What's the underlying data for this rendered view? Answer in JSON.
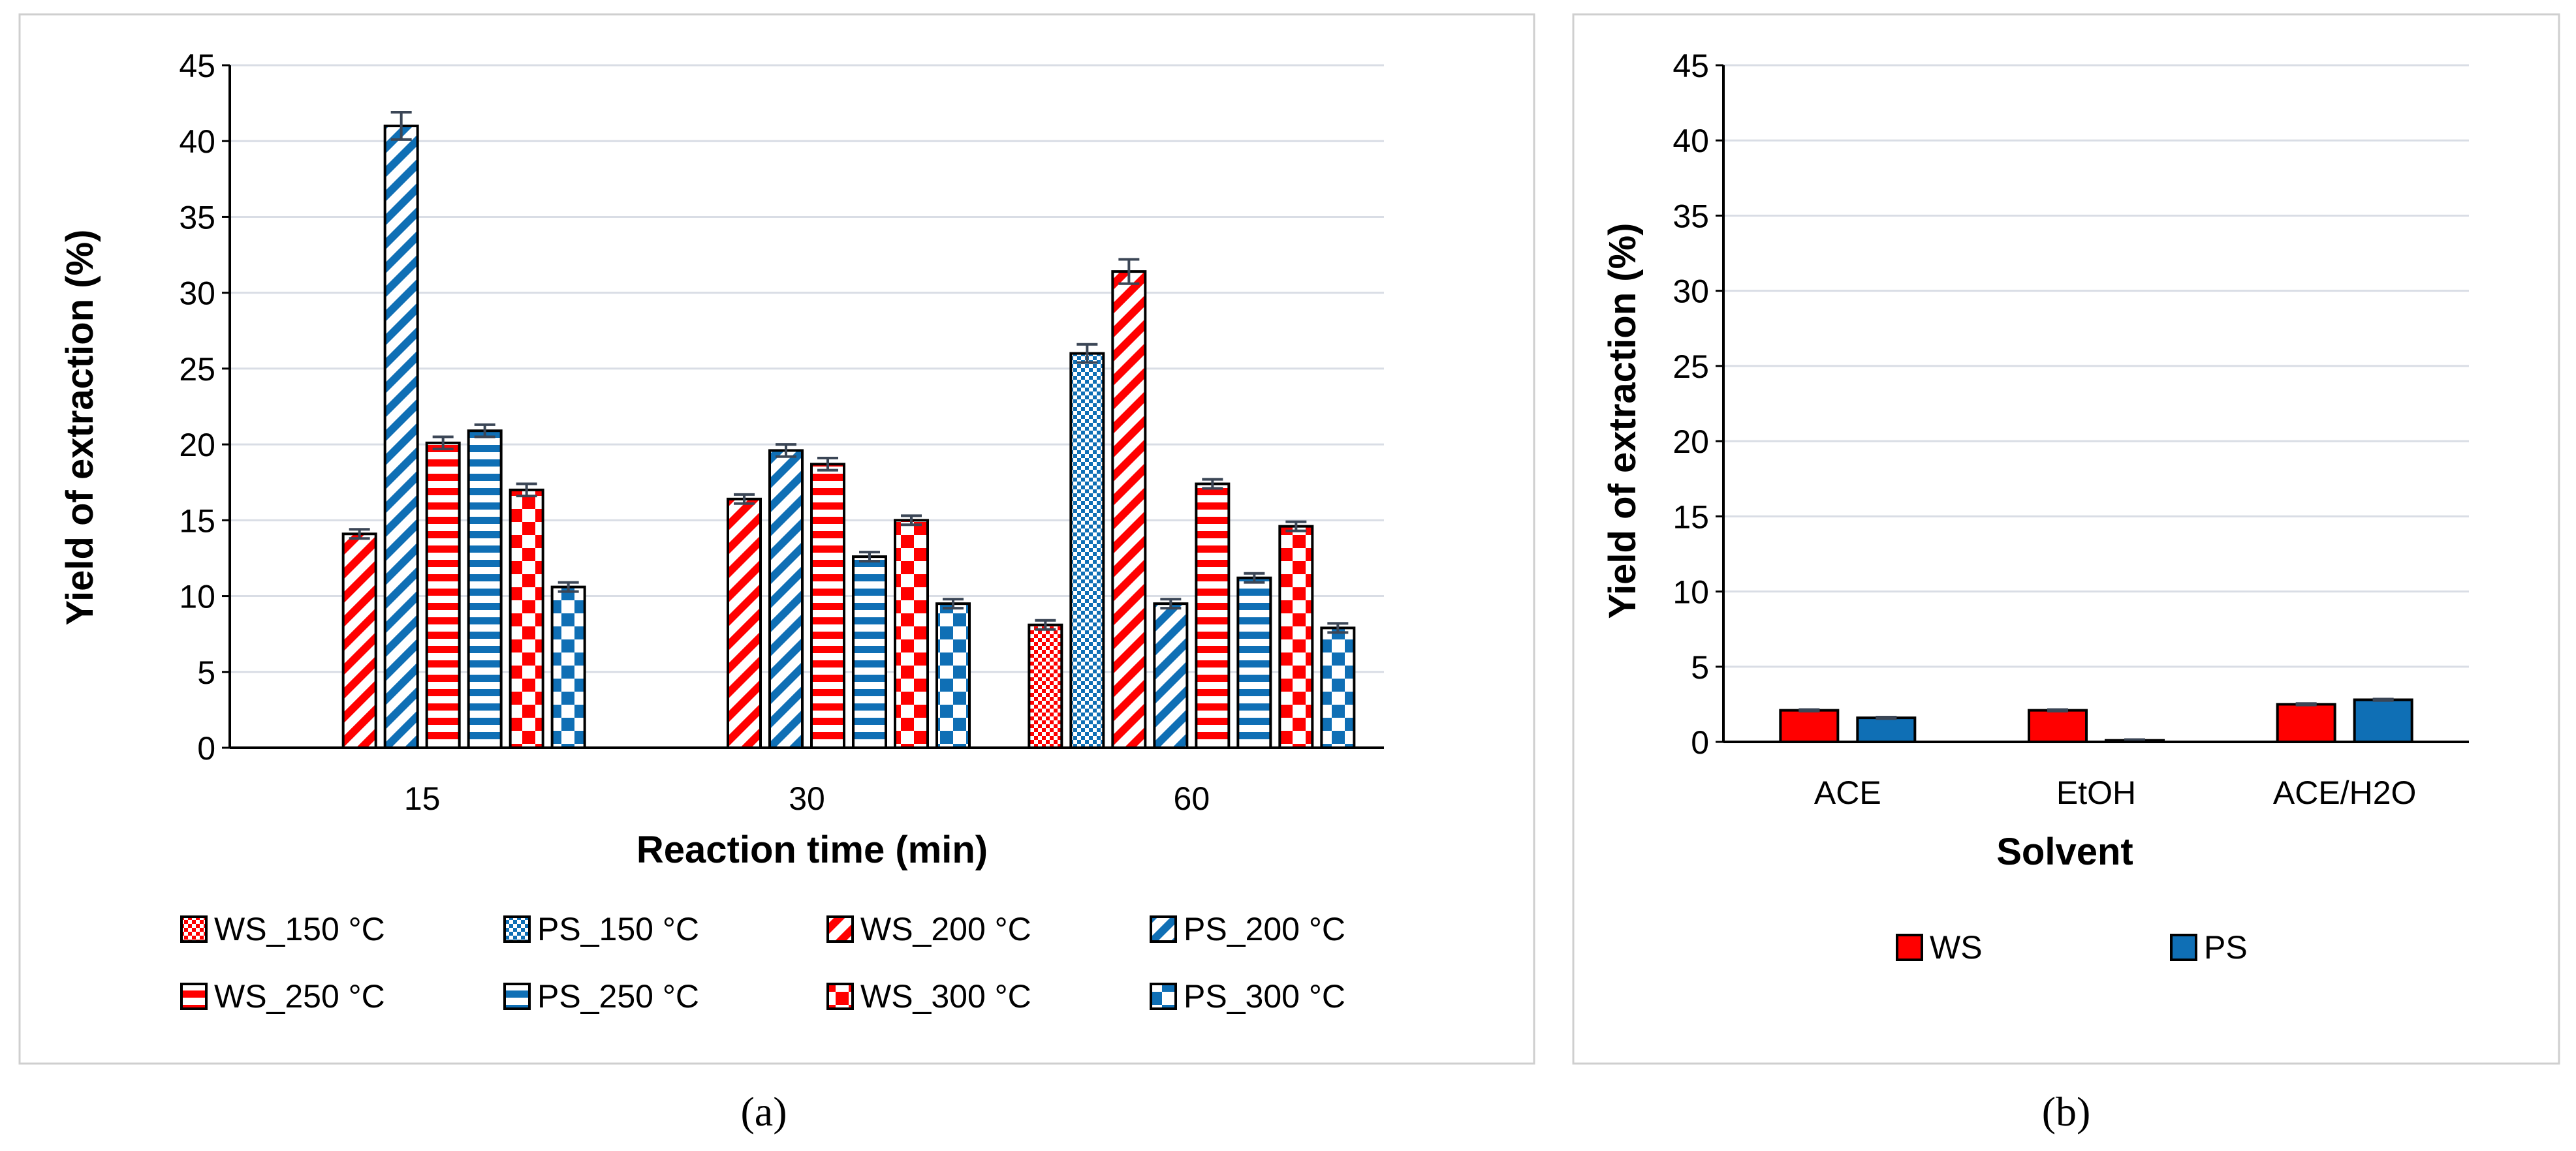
{
  "colors": {
    "ws": "#ff0000",
    "ps": "#0f6fb5",
    "grid": "#d9dde5",
    "axis": "#000000",
    "frame": "#cfcfcf",
    "error": "#3b4656"
  },
  "chart_data": [
    {
      "panel_label": "(a)",
      "type": "bar",
      "xlabel": "Reaction time (min)",
      "ylabel": "Yield of extraction (%)",
      "ylim": [
        0,
        45
      ],
      "yticks": [
        0,
        5,
        10,
        15,
        20,
        25,
        30,
        35,
        40,
        45
      ],
      "grid": true,
      "legend_position": "bottom",
      "categories": [
        "15",
        "30",
        "60"
      ],
      "series": [
        {
          "name": "WS_150 °C",
          "color": "ws",
          "pattern": "checker",
          "values": [
            null,
            null,
            8.1
          ],
          "errors": [
            0,
            0,
            0.3
          ]
        },
        {
          "name": "PS_150 °C",
          "color": "ps",
          "pattern": "checker",
          "values": [
            null,
            null,
            26.0
          ],
          "errors": [
            0,
            0,
            0.6
          ]
        },
        {
          "name": "WS_200 °C",
          "color": "ws",
          "pattern": "diagonal",
          "values": [
            14.1,
            16.4,
            31.4
          ],
          "errors": [
            0.3,
            0.3,
            0.8
          ]
        },
        {
          "name": "PS_200 °C",
          "color": "ps",
          "pattern": "diagonal",
          "values": [
            41.0,
            19.6,
            9.5
          ],
          "errors": [
            0.9,
            0.4,
            0.3
          ]
        },
        {
          "name": "WS_250 °C",
          "color": "ws",
          "pattern": "horizontal",
          "values": [
            20.1,
            18.7,
            17.4
          ],
          "errors": [
            0.4,
            0.4,
            0.3
          ]
        },
        {
          "name": "PS_250 °C",
          "color": "ps",
          "pattern": "horizontal",
          "values": [
            20.9,
            12.6,
            11.2
          ],
          "errors": [
            0.4,
            0.3,
            0.3
          ]
        },
        {
          "name": "WS_300 °C",
          "color": "ws",
          "pattern": "bigchecker",
          "values": [
            17.0,
            15.0,
            14.6
          ],
          "errors": [
            0.4,
            0.3,
            0.3
          ]
        },
        {
          "name": "PS_300 °C",
          "color": "ps",
          "pattern": "bigchecker",
          "values": [
            10.6,
            9.5,
            7.9
          ],
          "errors": [
            0.3,
            0.3,
            0.3
          ]
        }
      ]
    },
    {
      "panel_label": "(b)",
      "type": "bar",
      "xlabel": "Solvent",
      "ylabel": "Yield of extraction (%)",
      "ylim": [
        0,
        45
      ],
      "yticks": [
        0,
        5,
        10,
        15,
        20,
        25,
        30,
        35,
        40,
        45
      ],
      "grid": true,
      "legend_position": "bottom",
      "categories": [
        "ACE",
        "EtOH",
        "ACE/H2O"
      ],
      "series": [
        {
          "name": "WS",
          "color": "ws",
          "pattern": "solid",
          "values": [
            2.1,
            2.1,
            2.5
          ],
          "errors": [
            0.05,
            0.05,
            0.05
          ]
        },
        {
          "name": "PS",
          "color": "ps",
          "pattern": "solid",
          "values": [
            1.6,
            0.1,
            2.8
          ],
          "errors": [
            0.05,
            0.05,
            0.05
          ]
        }
      ]
    }
  ]
}
